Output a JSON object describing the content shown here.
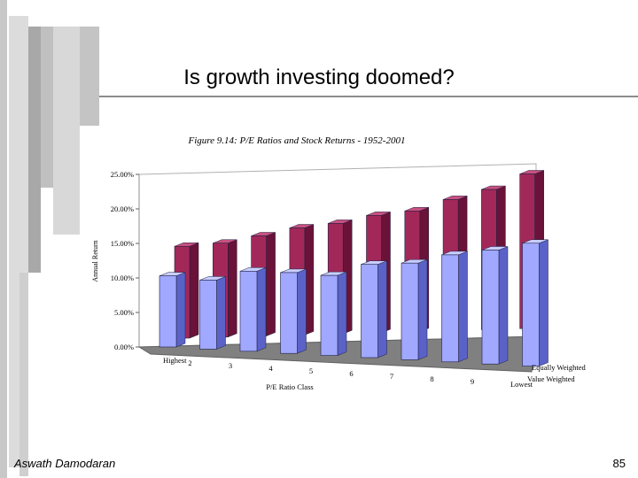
{
  "slide": {
    "title": "Is growth investing doomed?",
    "author": "Aswath Damodaran",
    "page_number": "85"
  },
  "colors": {
    "value_weighted_front": "#a0a8ff",
    "value_weighted_side": "#5a62c8",
    "value_weighted_top": "#c8ceff",
    "equally_weighted_front": "#a3285a",
    "equally_weighted_side": "#6a1238",
    "equally_weighted_top": "#c85080",
    "floor": "#808080",
    "decor_gray": "#c8c8c8",
    "decor_dark": "#a0a0a0"
  },
  "chart_data": {
    "type": "bar",
    "title": "Figure 9.14: P/E Ratios and Stock Returns - 1952-2001",
    "xlabel": "P/E Ratio Class",
    "ylabel": "Annual Return",
    "categories": [
      "Highest",
      "2",
      "3",
      "4",
      "5",
      "6",
      "7",
      "8",
      "9",
      "Lowest"
    ],
    "ylim": [
      0,
      25
    ],
    "yticks": [
      "0.00%",
      "5.00%",
      "10.00%",
      "15.00%",
      "20.00%",
      "25.00%"
    ],
    "series": [
      {
        "name": "Value Weighted",
        "values": [
          10.3,
          10.0,
          11.6,
          11.7,
          11.6,
          13.5,
          14.0,
          15.5,
          16.5,
          17.8
        ]
      },
      {
        "name": "Equally Weighted",
        "values": [
          13.3,
          13.6,
          14.5,
          15.5,
          16.0,
          17.0,
          17.5,
          19.0,
          20.3,
          22.4
        ]
      }
    ],
    "grid": false
  }
}
